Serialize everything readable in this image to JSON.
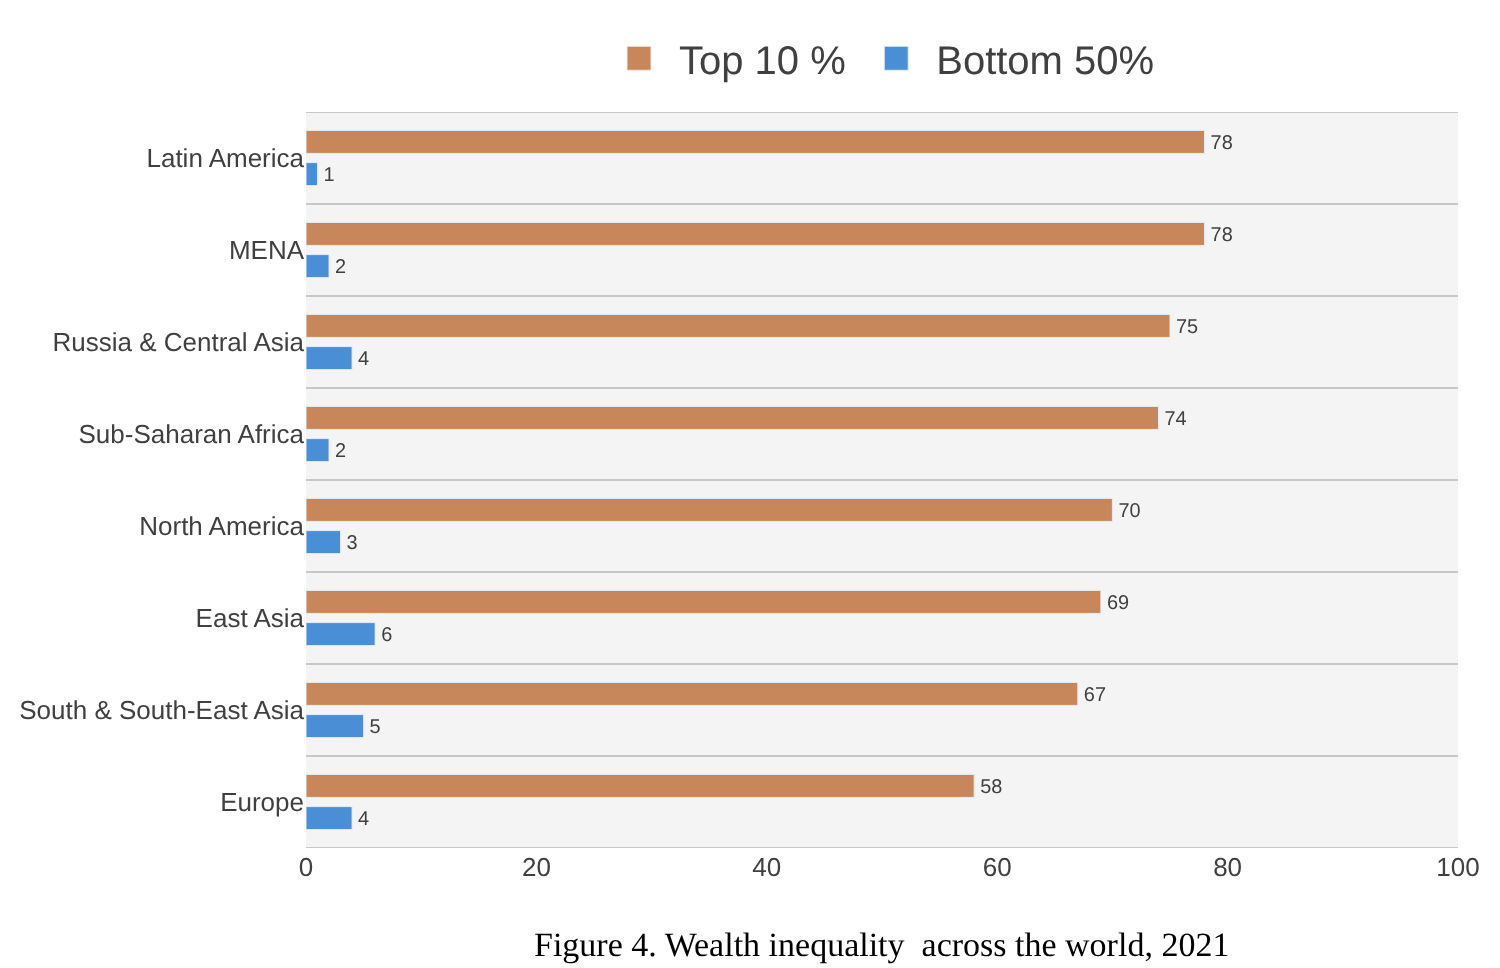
{
  "chart_data": {
    "type": "bar",
    "orientation": "horizontal",
    "title": "Figure 4. Wealth inequality  across the world, 2021",
    "categories": [
      "Latin America",
      "MENA",
      "Russia & Central Asia",
      "Sub-Saharan Africa",
      "North America",
      "East Asia",
      "South & South-East Asia",
      "Europe"
    ],
    "series": [
      {
        "name": "Top 10 %",
        "color": "#c8875a",
        "values": [
          78,
          78,
          75,
          74,
          70,
          69,
          67,
          58
        ]
      },
      {
        "name": "Bottom 50%",
        "color": "#4a8fd6",
        "values": [
          1,
          2,
          4,
          2,
          3,
          6,
          5,
          4
        ]
      }
    ],
    "xlim": [
      0,
      100
    ],
    "xticks": [
      0,
      20,
      40,
      60,
      80,
      100
    ],
    "grid": "y",
    "legend": "top",
    "data_labels": true
  }
}
